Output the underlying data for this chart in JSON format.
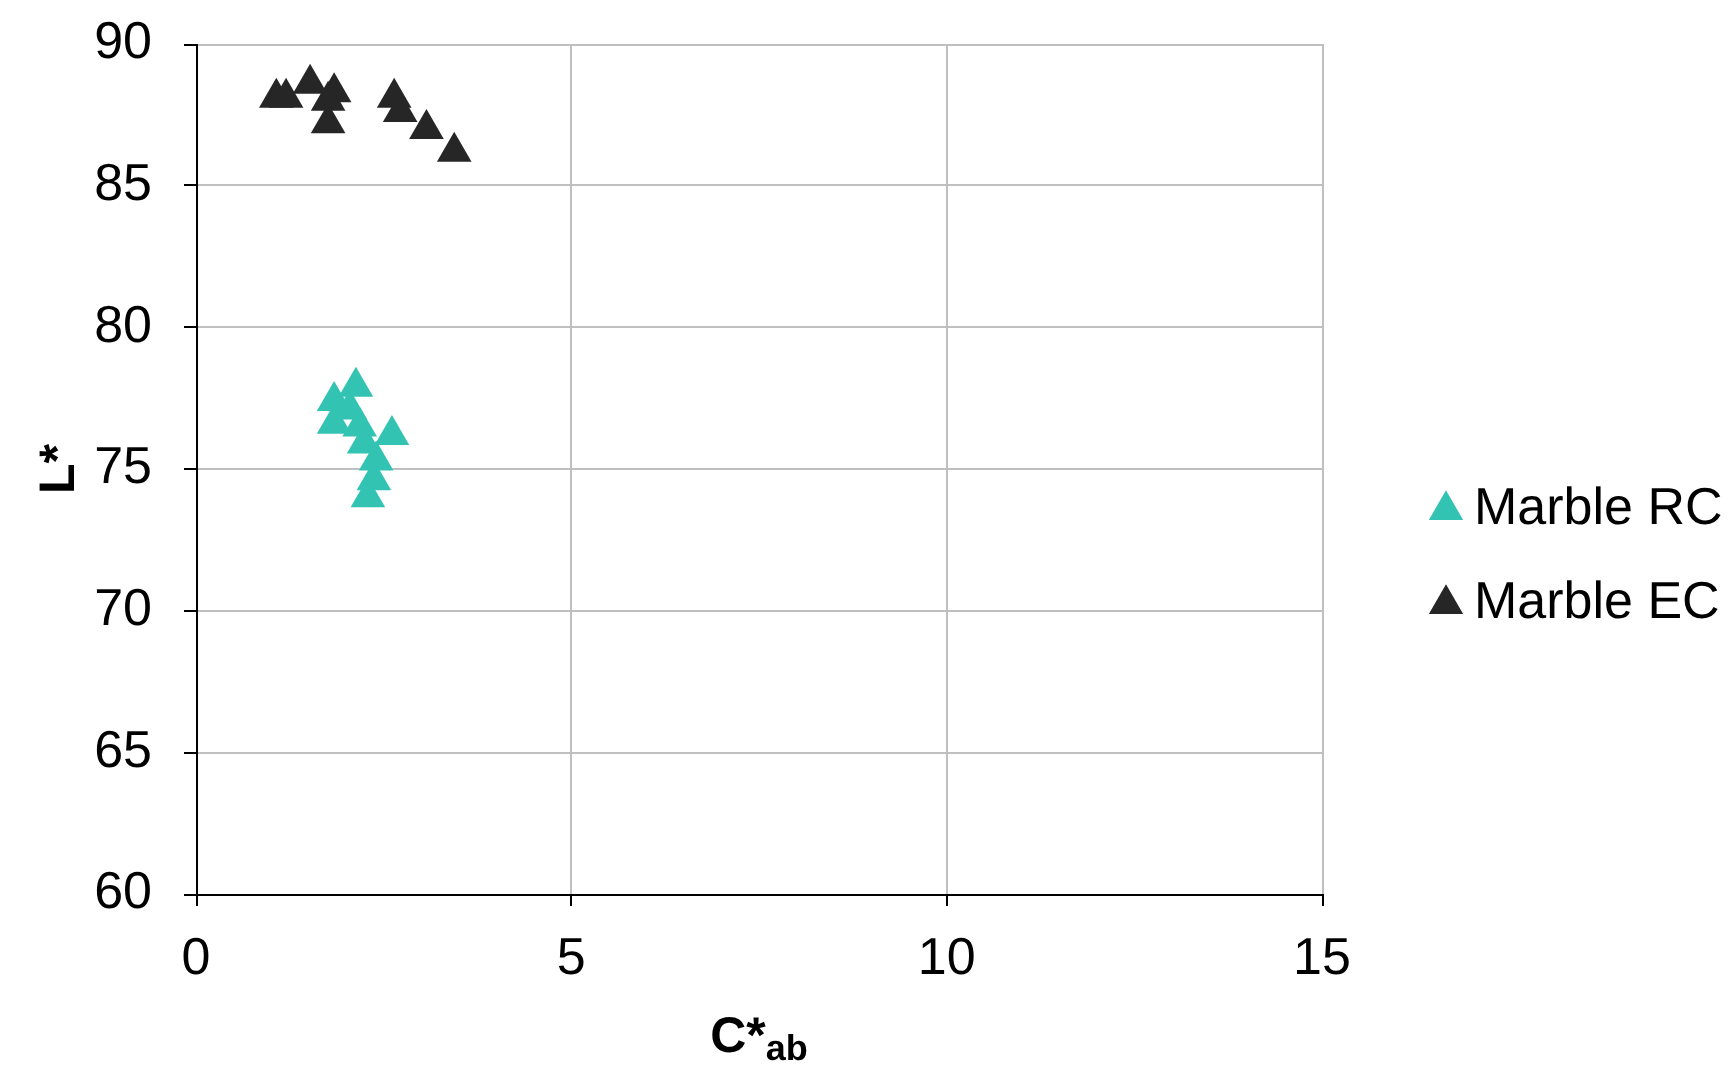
{
  "chart_data": {
    "type": "scatter",
    "xlabel": "C*$_{ab}$",
    "ylabel": "L*",
    "xlim": [
      0,
      15
    ],
    "ylim": [
      60,
      90
    ],
    "xticks": [
      0,
      5,
      10,
      15
    ],
    "yticks": [
      60,
      65,
      70,
      75,
      80,
      85,
      90
    ],
    "grid": true,
    "legend": "right",
    "marker": "triangle",
    "series": [
      {
        "name": "Marble RC",
        "color": "#33c3b3",
        "x": [
          1.84,
          2.13,
          2.05,
          1.84,
          2.18,
          2.24,
          2.61,
          2.4,
          2.37,
          2.29
        ],
        "values": [
          77.4,
          77.9,
          77.1,
          76.6,
          76.5,
          75.9,
          76.2,
          75.3,
          74.6,
          74.0
        ]
      },
      {
        "name": "Marble EC",
        "color": "#262626",
        "x": [
          1.07,
          1.2,
          1.52,
          1.84,
          1.76,
          1.76,
          2.64,
          2.72,
          3.07,
          3.44
        ],
        "values": [
          88.1,
          88.1,
          88.6,
          88.3,
          88.0,
          87.2,
          88.1,
          87.6,
          87.0,
          86.2
        ]
      }
    ]
  }
}
